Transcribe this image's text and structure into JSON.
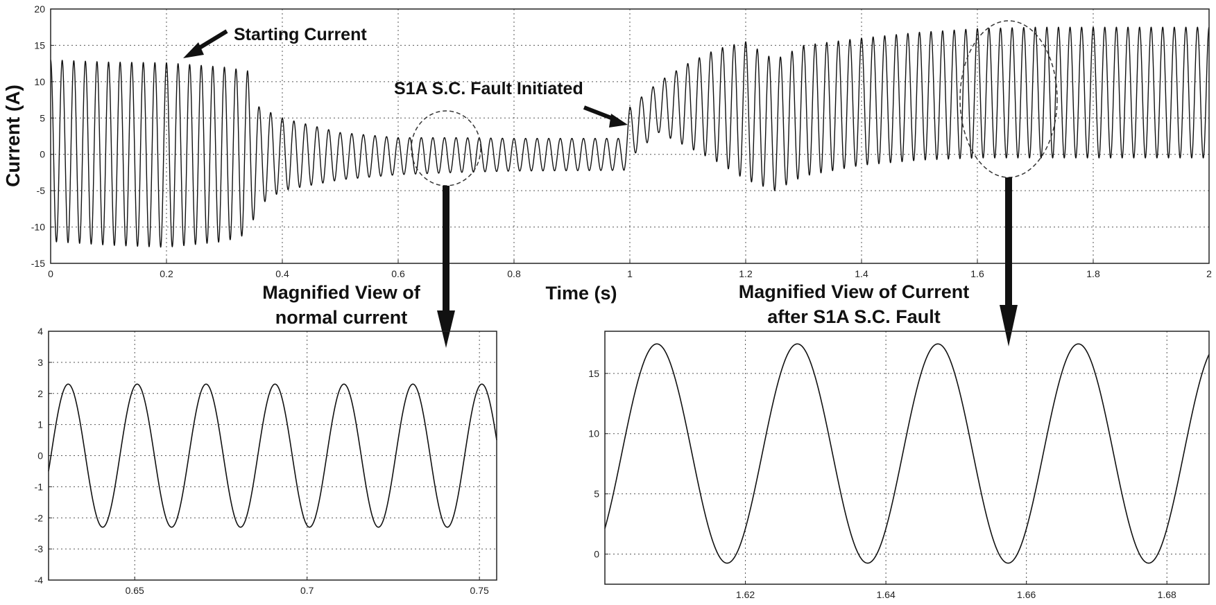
{
  "chart_data": [
    {
      "type": "line",
      "xlabel": "Time (s)",
      "ylabel": "Current (A)",
      "xlim": [
        0,
        2
      ],
      "ylim": [
        -15,
        20
      ],
      "grid": true,
      "x_ticks": [
        "0",
        "0.2",
        "0.4",
        "0.6",
        "0.8",
        "1",
        "1.2",
        "1.4",
        "1.6",
        "1.8",
        "2"
      ],
      "y_ticks": [
        "20",
        "15",
        "10",
        "5",
        "0",
        "-5",
        "-10",
        "-15"
      ],
      "signal": {
        "frequency_hz": 50,
        "fault_time_s": 1.0
      },
      "envelope": {
        "t": [
          0.0,
          0.1,
          0.2,
          0.3,
          0.34,
          0.36,
          0.4,
          0.5,
          0.6,
          0.7,
          0.8,
          0.99,
          1.0,
          1.05,
          1.1,
          1.15,
          1.2,
          1.25,
          1.3,
          1.4,
          1.5,
          1.6,
          1.7,
          1.8,
          2.0
        ],
        "upper": [
          13.0,
          12.7,
          12.6,
          12.0,
          11.5,
          6.5,
          5.0,
          3.0,
          2.3,
          2.3,
          2.2,
          2.2,
          6.5,
          10.0,
          12.5,
          14.5,
          15.5,
          13.0,
          15.0,
          16.0,
          16.8,
          17.3,
          17.5,
          17.5,
          17.5
        ],
        "lower": [
          -12.0,
          -12.5,
          -12.8,
          -12.0,
          -11.0,
          -7.0,
          -5.0,
          -3.5,
          -2.8,
          -2.5,
          -2.3,
          -2.2,
          -0.5,
          3.0,
          1.0,
          -1.0,
          -3.5,
          -5.0,
          -3.0,
          -1.5,
          -0.8,
          -0.5,
          -0.5,
          -0.5,
          -0.5
        ]
      },
      "annotations": [
        {
          "text": "Starting Current",
          "x": 0.24,
          "y": 12.5
        },
        {
          "text": "S1A S.C. Fault Initiated",
          "x": 1.0,
          "y": 3.5
        }
      ]
    },
    {
      "type": "line",
      "title": "Magnified View of normal current",
      "xlim": [
        0.625,
        0.755
      ],
      "ylim": [
        -4,
        4
      ],
      "grid": true,
      "x_ticks": [
        "0.65",
        "0.7",
        "0.75"
      ],
      "y_ticks": [
        "4",
        "3",
        "2",
        "1",
        "0",
        "-1",
        "-2",
        "-3",
        "-4"
      ],
      "signal": {
        "frequency_hz": 50,
        "amplitude": 2.3,
        "offset": 0,
        "peak_time_s": 0.6307
      }
    },
    {
      "type": "line",
      "title": "Magnified View of Current after S1A S.C. Fault",
      "xlim": [
        1.6,
        1.686
      ],
      "ylim": [
        -2.5,
        18.5
      ],
      "grid": true,
      "x_ticks": [
        "1.62",
        "1.64",
        "1.66",
        "1.68"
      ],
      "y_ticks": [
        "15",
        "10",
        "5",
        "0"
      ],
      "signal": {
        "frequency_hz": 50,
        "amplitude": 9.1,
        "offset": 8.35,
        "peak_time_s": 1.6074
      }
    }
  ],
  "callouts": {
    "left_title_line1": "Magnified View of",
    "left_title_line2": "normal current",
    "right_title_line1": "Magnified View of Current",
    "right_title_line2": "after S1A S.C. Fault"
  }
}
